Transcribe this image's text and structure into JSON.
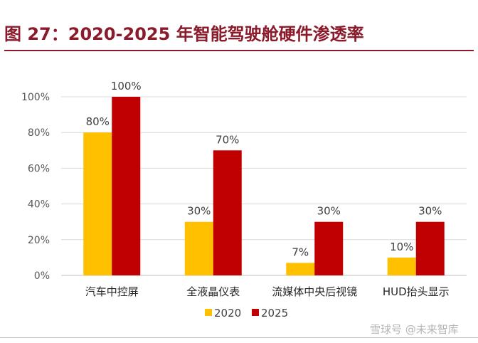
{
  "figure": {
    "title": "图 27：2020-2025 年智能驾驶舱硬件渗透率",
    "watermark": "雪球号 @未来智库",
    "title_color": "#8B1A2B"
  },
  "chart_data": {
    "type": "bar",
    "categories": [
      "汽车中控屏",
      "全液晶仪表",
      "流媒体中央后视镜",
      "HUD抬头显示"
    ],
    "series": [
      {
        "name": "2020",
        "values": [
          80,
          30,
          7,
          10
        ],
        "labels": [
          "80%",
          "30%",
          "7%",
          "10%"
        ],
        "color": "#FFC000"
      },
      {
        "name": "2025",
        "values": [
          100,
          70,
          30,
          30
        ],
        "labels": [
          "100%",
          "70%",
          "30%",
          "30%"
        ],
        "color": "#C00000"
      }
    ],
    "ylim": [
      0,
      100
    ],
    "yticks": [
      0,
      20,
      40,
      60,
      80,
      100
    ],
    "ytick_labels": [
      "0%",
      "20%",
      "40%",
      "60%",
      "80%",
      "100%"
    ],
    "grid": true,
    "legend": "bottom"
  }
}
